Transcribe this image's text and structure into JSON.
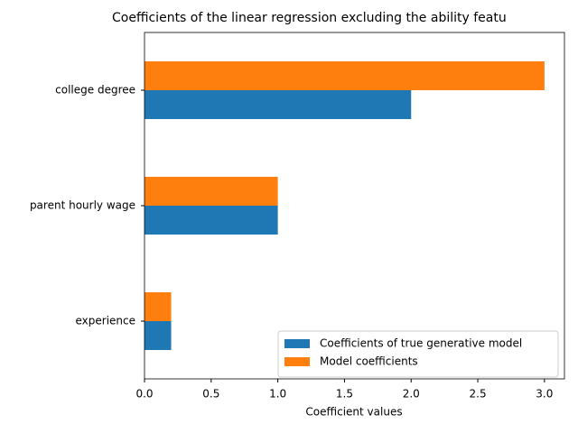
{
  "chart_data": {
    "type": "barh",
    "title": "Coefficients of the linear regression excluding the ability featu",
    "xlabel": "Coefficient values",
    "categories": [
      "college degree",
      "parent hourly wage",
      "experience"
    ],
    "series": [
      {
        "name": "Coefficients of true generative model",
        "color": "#1f77b4",
        "values": [
          2.0,
          1.0,
          0.2
        ]
      },
      {
        "name": "Model coefficients",
        "color": "#ff7f0e",
        "values": [
          3.0,
          1.0,
          0.2
        ]
      }
    ],
    "xlim": [
      0,
      3.15
    ],
    "xticks": [
      {
        "value": 0,
        "label": "0.0"
      },
      {
        "value": 0.5,
        "label": "0.5"
      },
      {
        "value": 1,
        "label": "1.0"
      },
      {
        "value": 1.5,
        "label": "1.5"
      },
      {
        "value": 2,
        "label": "2.0"
      },
      {
        "value": 2.5,
        "label": "2.5"
      },
      {
        "value": 3,
        "label": "3.0"
      }
    ],
    "legend": "lower right"
  }
}
